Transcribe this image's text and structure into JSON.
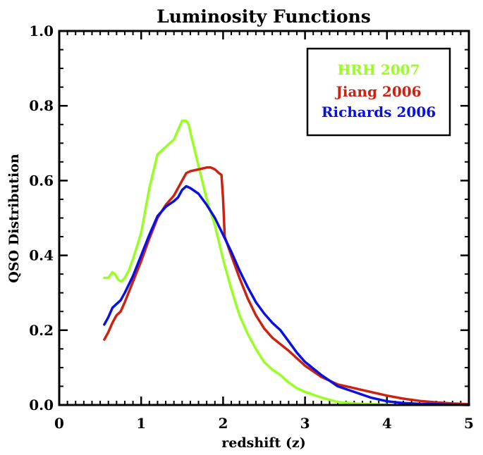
{
  "chart_data": {
    "type": "line",
    "title": "Luminosity Functions",
    "xlabel": "redshift (z)",
    "ylabel": "QSO Distribution",
    "xlim": [
      0,
      5
    ],
    "ylim": [
      0,
      1.0
    ],
    "x_ticks": [
      0,
      1,
      2,
      3,
      4,
      5
    ],
    "x_tick_labels": [
      "0",
      "1",
      "2",
      "3",
      "4",
      "5"
    ],
    "y_ticks": [
      0,
      0.2,
      0.4,
      0.6,
      0.8,
      1.0
    ],
    "y_tick_labels": [
      "0.0",
      "0.2",
      "0.4",
      "0.6",
      "0.8",
      "1.0"
    ],
    "grid": false,
    "legend_position": "top-right",
    "series": [
      {
        "name": "HRH 2007",
        "color": "#99ff22",
        "x": [
          0.55,
          0.6,
          0.65,
          0.68,
          0.72,
          0.76,
          0.8,
          0.85,
          0.9,
          1.0,
          1.1,
          1.2,
          1.3,
          1.4,
          1.45,
          1.5,
          1.55,
          1.58,
          1.6,
          1.7,
          1.8,
          1.9,
          2.0,
          2.1,
          2.2,
          2.3,
          2.4,
          2.5,
          2.6,
          2.7,
          2.8,
          2.9,
          3.0,
          3.2,
          3.4,
          3.6,
          3.8,
          4.0
        ],
        "y": [
          0.34,
          0.34,
          0.355,
          0.35,
          0.335,
          0.33,
          0.34,
          0.36,
          0.39,
          0.46,
          0.58,
          0.67,
          0.69,
          0.71,
          0.735,
          0.76,
          0.76,
          0.75,
          0.73,
          0.64,
          0.55,
          0.48,
          0.39,
          0.31,
          0.24,
          0.19,
          0.15,
          0.115,
          0.095,
          0.08,
          0.06,
          0.045,
          0.035,
          0.02,
          0.008,
          0.004,
          0.002,
          0.001
        ]
      },
      {
        "name": "Jiang 2006",
        "color": "#cc2211",
        "x": [
          0.55,
          0.6,
          0.65,
          0.7,
          0.75,
          0.8,
          0.9,
          1.0,
          1.1,
          1.2,
          1.3,
          1.4,
          1.5,
          1.55,
          1.6,
          1.7,
          1.8,
          1.85,
          1.9,
          1.95,
          1.98,
          2.0,
          2.02,
          2.1,
          2.2,
          2.3,
          2.4,
          2.5,
          2.6,
          2.8,
          3.0,
          3.2,
          3.4,
          3.6,
          3.8,
          4.0,
          4.2,
          4.4,
          4.6,
          4.8,
          5.0
        ],
        "y": [
          0.175,
          0.195,
          0.22,
          0.24,
          0.25,
          0.275,
          0.33,
          0.385,
          0.445,
          0.5,
          0.535,
          0.56,
          0.6,
          0.62,
          0.625,
          0.63,
          0.635,
          0.635,
          0.63,
          0.62,
          0.615,
          0.55,
          0.45,
          0.4,
          0.34,
          0.285,
          0.24,
          0.205,
          0.18,
          0.145,
          0.105,
          0.075,
          0.055,
          0.045,
          0.035,
          0.025,
          0.017,
          0.011,
          0.007,
          0.004,
          0.002
        ]
      },
      {
        "name": "Richards 2006",
        "color": "#0a10dd",
        "x": [
          0.55,
          0.6,
          0.65,
          0.7,
          0.75,
          0.8,
          0.9,
          1.0,
          1.1,
          1.2,
          1.3,
          1.4,
          1.45,
          1.5,
          1.55,
          1.6,
          1.7,
          1.8,
          1.9,
          2.0,
          2.1,
          2.2,
          2.3,
          2.4,
          2.5,
          2.6,
          2.7,
          2.8,
          2.9,
          3.0,
          3.2,
          3.4,
          3.6,
          3.8,
          4.0,
          4.2,
          4.4,
          4.6,
          4.8,
          5.0
        ],
        "y": [
          0.215,
          0.235,
          0.26,
          0.27,
          0.28,
          0.3,
          0.345,
          0.4,
          0.455,
          0.505,
          0.53,
          0.545,
          0.555,
          0.575,
          0.585,
          0.58,
          0.565,
          0.535,
          0.5,
          0.455,
          0.41,
          0.36,
          0.315,
          0.275,
          0.245,
          0.22,
          0.2,
          0.17,
          0.14,
          0.115,
          0.08,
          0.05,
          0.035,
          0.02,
          0.01,
          0.005,
          0.003,
          0.002,
          0.001,
          0.0
        ]
      }
    ]
  }
}
